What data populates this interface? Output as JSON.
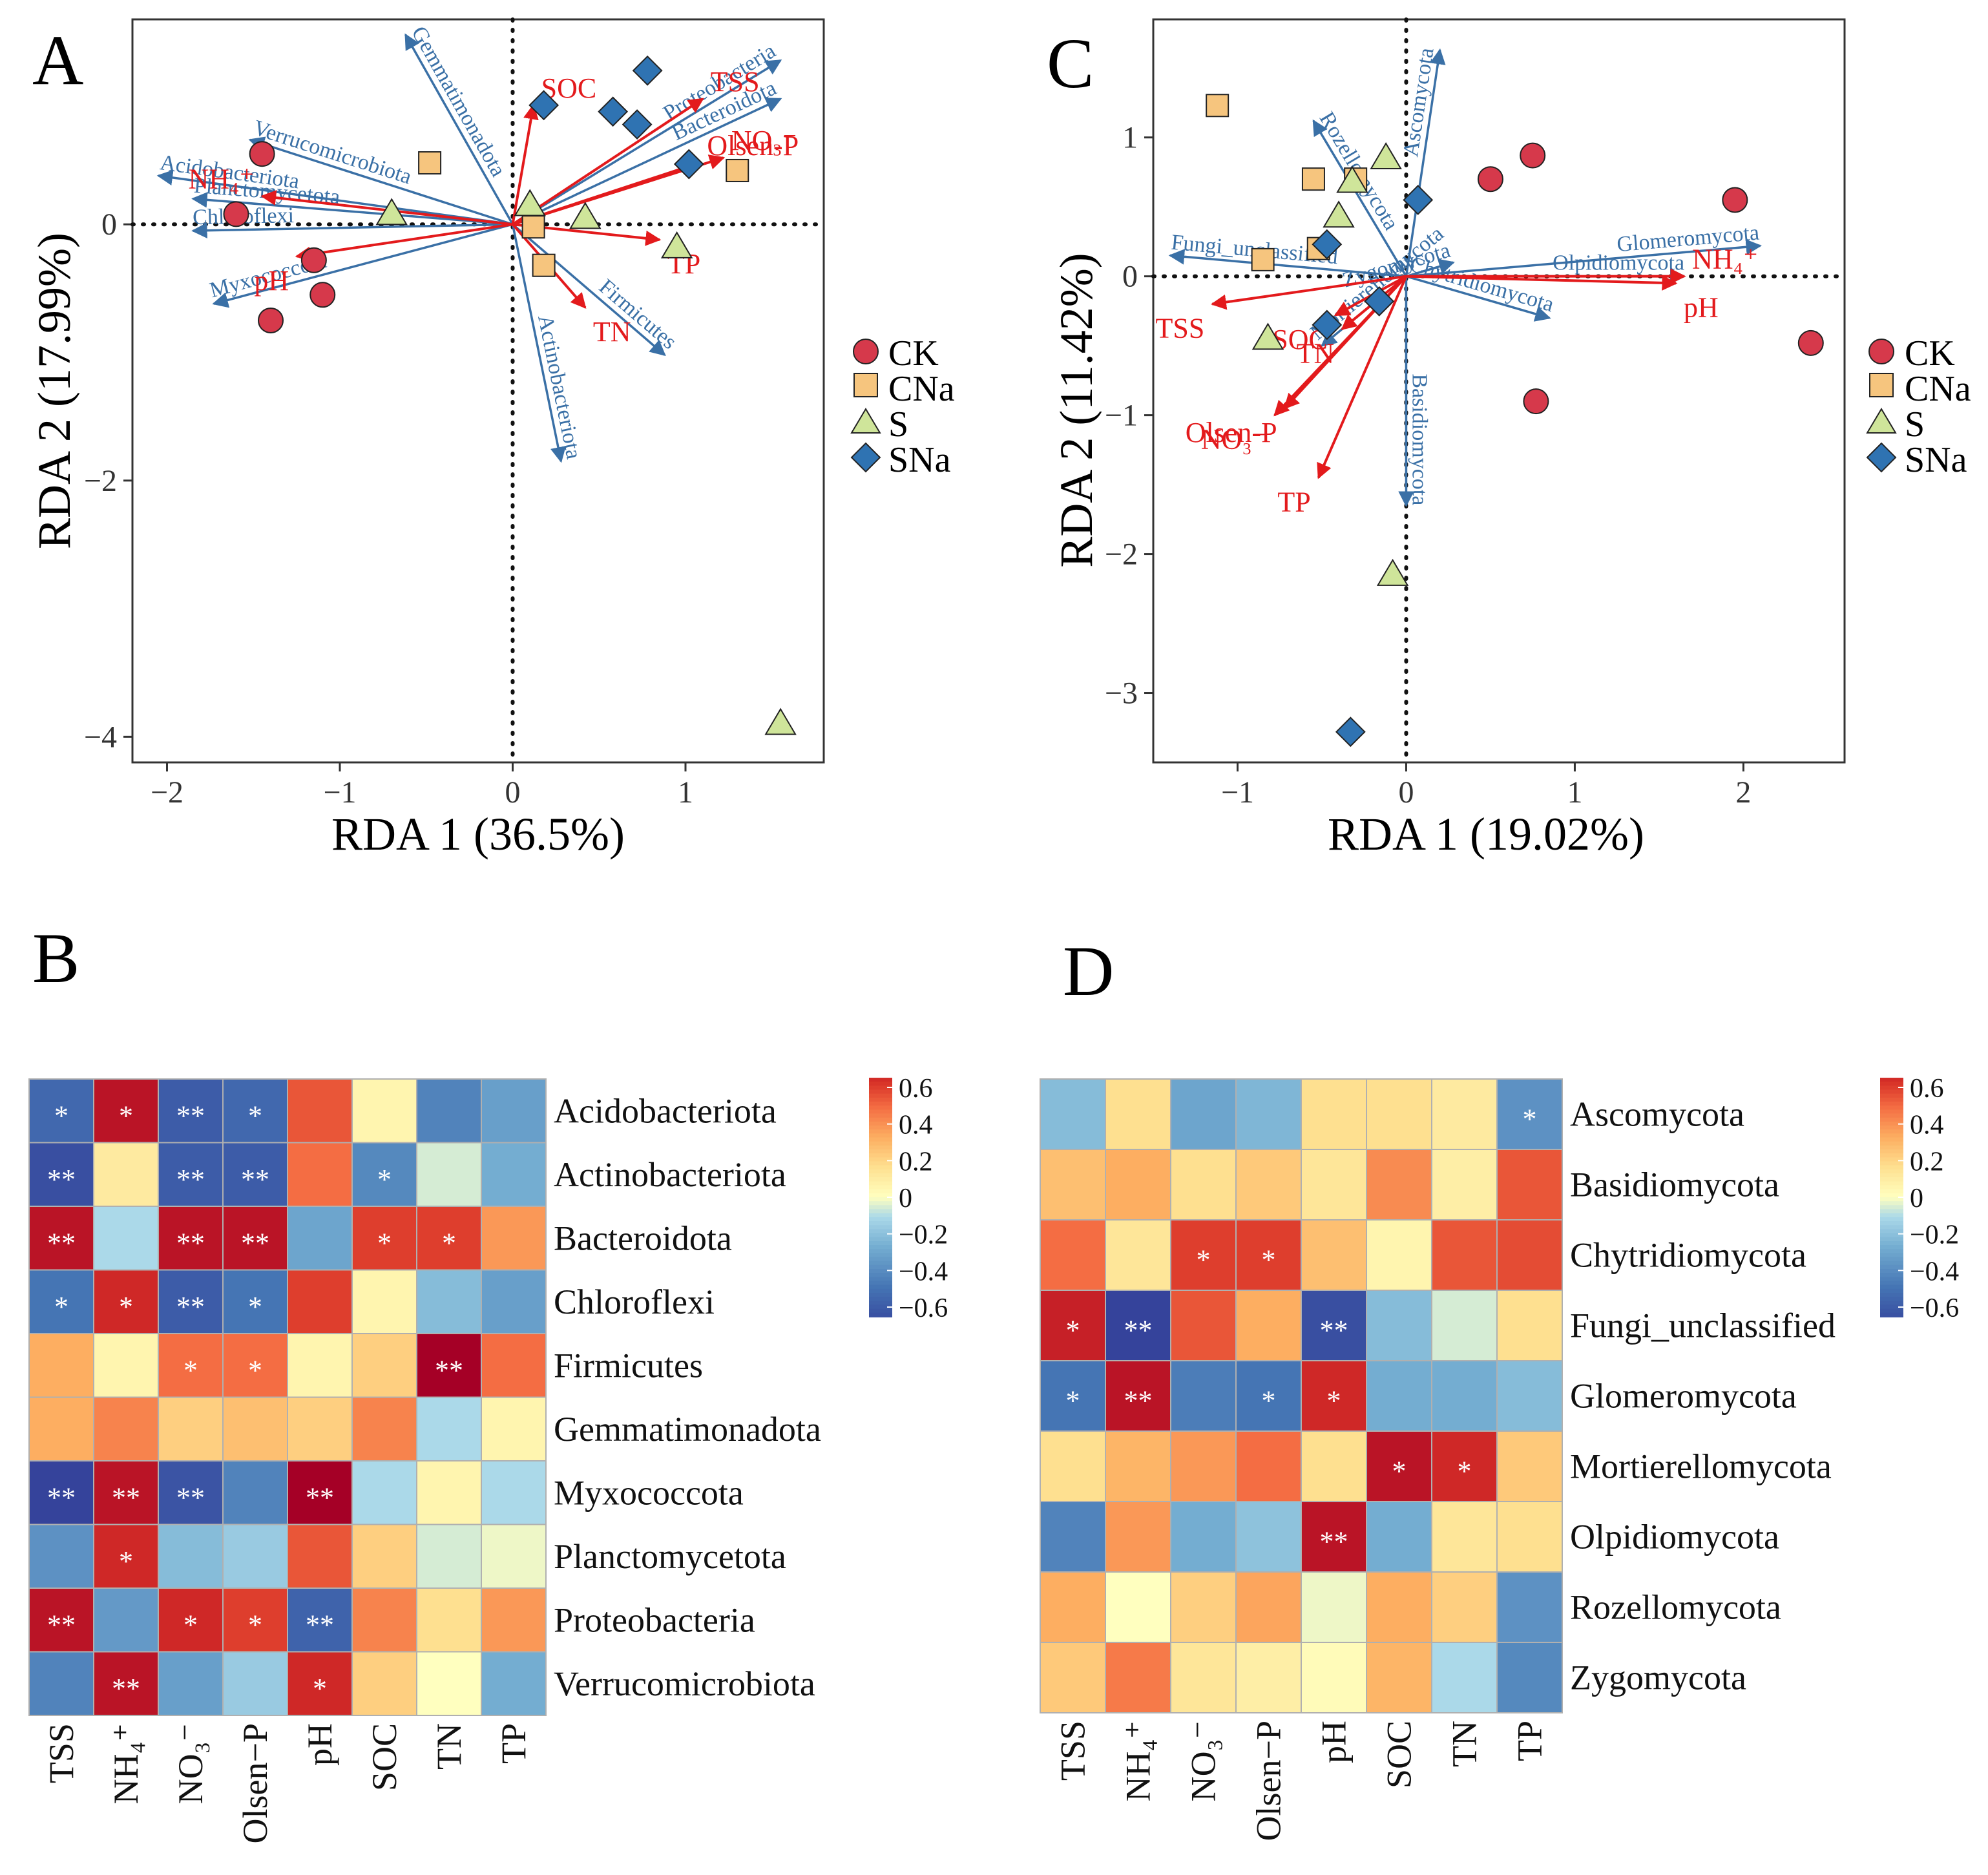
{
  "figure": {
    "colors": {
      "group_CK": "#d6394b",
      "group_CNa": "#f6c57e",
      "group_S": "#cfe59a",
      "group_SNa": "#2f73b2",
      "species_arrow": "#3a70a6",
      "env_arrow": "#e31a1c",
      "heatmap_low": "#313695",
      "heatmap_mid": "#ffffbf",
      "heatmap_high": "#a50026"
    },
    "legend_groups": [
      "CK",
      "CNa",
      "S",
      "SNa"
    ],
    "legend_shapes": [
      "circle-icon",
      "square-icon",
      "triangle-icon",
      "diamond-icon"
    ]
  },
  "chart_data": [
    {
      "panel": "A",
      "type": "scatter",
      "title": "A",
      "xlabel": "RDA 1 (36.5%)",
      "ylabel": "RDA 2 (17.99%)",
      "xlim": [
        -2.2,
        1.8
      ],
      "ylim": [
        -4.2,
        1.6
      ],
      "xticks": [
        -2,
        -1,
        0,
        1
      ],
      "yticks": [
        -4,
        -2,
        0
      ],
      "xtick_labels": [
        "−2",
        "−1",
        "0",
        "1"
      ],
      "ytick_labels": [
        "−4",
        "−2",
        "0"
      ],
      "points": [
        {
          "group": "CK",
          "x": -1.45,
          "y": 0.55
        },
        {
          "group": "CK",
          "x": -1.6,
          "y": 0.08
        },
        {
          "group": "CK",
          "x": -1.15,
          "y": -0.28
        },
        {
          "group": "CK",
          "x": -1.1,
          "y": -0.55
        },
        {
          "group": "CK",
          "x": -1.4,
          "y": -0.75
        },
        {
          "group": "CNa",
          "x": -0.48,
          "y": 0.48
        },
        {
          "group": "CNa",
          "x": 0.12,
          "y": -0.02
        },
        {
          "group": "CNa",
          "x": 0.18,
          "y": -0.32
        },
        {
          "group": "CNa",
          "x": 1.3,
          "y": 0.42
        },
        {
          "group": "S",
          "x": -0.7,
          "y": 0.08
        },
        {
          "group": "S",
          "x": 0.1,
          "y": 0.15
        },
        {
          "group": "S",
          "x": 0.42,
          "y": 0.05
        },
        {
          "group": "S",
          "x": 0.95,
          "y": -0.18
        },
        {
          "group": "S",
          "x": 1.55,
          "y": -3.9
        },
        {
          "group": "SNa",
          "x": 0.18,
          "y": 0.93
        },
        {
          "group": "SNa",
          "x": 0.58,
          "y": 0.88
        },
        {
          "group": "SNa",
          "x": 0.72,
          "y": 0.78
        },
        {
          "group": "SNa",
          "x": 0.78,
          "y": 1.2
        },
        {
          "group": "SNa",
          "x": 1.02,
          "y": 0.47
        }
      ],
      "species_arrows": [
        {
          "label": "Gemmatimonadota",
          "x": -0.62,
          "y": 1.48
        },
        {
          "label": "Verrucomicrobiota",
          "x": -1.52,
          "y": 0.66
        },
        {
          "label": "Acidobacteriota",
          "x": -2.05,
          "y": 0.38
        },
        {
          "label": "Planctomycetota",
          "x": -1.85,
          "y": 0.2
        },
        {
          "label": "Chloroflexi",
          "x": -1.85,
          "y": -0.05
        },
        {
          "label": "Myxococcota",
          "x": -1.73,
          "y": -0.62
        },
        {
          "label": "Proteobacteria",
          "x": 1.55,
          "y": 1.28
        },
        {
          "label": "Bacteroidota",
          "x": 1.55,
          "y": 0.98
        },
        {
          "label": "Firmicutes",
          "x": 0.88,
          "y": -1.02
        },
        {
          "label": "Actinobacteriota",
          "x": 0.28,
          "y": -1.85
        }
      ],
      "env_arrows": [
        {
          "label": "SOC",
          "x": 0.12,
          "y": 0.93
        },
        {
          "label": "TSS",
          "x": 1.1,
          "y": 0.98
        },
        {
          "label": "NO₃⁻",
          "x": 1.22,
          "y": 0.52
        },
        {
          "label": "Olsen-P",
          "x": 1.08,
          "y": 0.48
        },
        {
          "label": "TP",
          "x": 0.85,
          "y": -0.12
        },
        {
          "label": "TN",
          "x": 0.42,
          "y": -0.65
        },
        {
          "label": "pH",
          "x": -1.25,
          "y": -0.25
        },
        {
          "label": "NH₄⁺",
          "x": -1.45,
          "y": 0.22
        }
      ]
    },
    {
      "panel": "C",
      "type": "scatter",
      "title": "C",
      "xlabel": "RDA 1 (19.02%)",
      "ylabel": "RDA 2 (11.42%)",
      "xlim": [
        -1.5,
        2.6
      ],
      "ylim": [
        -3.5,
        1.85
      ],
      "xticks": [
        -1,
        0,
        1,
        2
      ],
      "yticks": [
        -3,
        -2,
        -1,
        0,
        1
      ],
      "xtick_labels": [
        "−1",
        "0",
        "1",
        "2"
      ],
      "ytick_labels": [
        "−3",
        "−2",
        "−1",
        "0",
        "1"
      ],
      "points": [
        {
          "group": "CK",
          "x": 0.5,
          "y": 0.7
        },
        {
          "group": "CK",
          "x": 0.75,
          "y": 0.87
        },
        {
          "group": "CK",
          "x": 1.95,
          "y": 0.55
        },
        {
          "group": "CK",
          "x": 2.4,
          "y": -0.48
        },
        {
          "group": "CK",
          "x": 0.77,
          "y": -0.9
        },
        {
          "group": "CNa",
          "x": -1.12,
          "y": 1.23
        },
        {
          "group": "CNa",
          "x": -0.55,
          "y": 0.7
        },
        {
          "group": "CNa",
          "x": -0.3,
          "y": 0.7
        },
        {
          "group": "CNa",
          "x": -0.85,
          "y": 0.12
        },
        {
          "group": "CNa",
          "x": -0.52,
          "y": 0.2
        },
        {
          "group": "S",
          "x": -0.12,
          "y": 0.85
        },
        {
          "group": "S",
          "x": -0.32,
          "y": 0.68
        },
        {
          "group": "S",
          "x": -0.4,
          "y": 0.43
        },
        {
          "group": "S",
          "x": -0.82,
          "y": -0.45
        },
        {
          "group": "S",
          "x": -0.08,
          "y": -2.15
        },
        {
          "group": "SNa",
          "x": 0.07,
          "y": 0.55
        },
        {
          "group": "SNa",
          "x": -0.47,
          "y": 0.23
        },
        {
          "group": "SNa",
          "x": -0.47,
          "y": -0.35
        },
        {
          "group": "SNa",
          "x": -0.16,
          "y": -0.18
        },
        {
          "group": "SNa",
          "x": -0.33,
          "y": -3.28
        }
      ],
      "species_arrows": [
        {
          "label": "Ascomycota",
          "x": 0.2,
          "y": 1.63
        },
        {
          "label": "Rozellomycota",
          "x": -0.55,
          "y": 1.12
        },
        {
          "label": "Fungi_unclassified",
          "x": -1.4,
          "y": 0.15
        },
        {
          "label": "Zygomycota",
          "x": 0.28,
          "y": 0.1
        },
        {
          "label": "Glomeromycota",
          "x": 2.1,
          "y": 0.22
        },
        {
          "label": "Olpidiomycota",
          "x": 1.65,
          "y": 0.0
        },
        {
          "label": "Chytridiomycota",
          "x": 0.85,
          "y": -0.3
        },
        {
          "label": "Mortierellomycota",
          "x": -0.5,
          "y": -0.5
        },
        {
          "label": "Basidiomycota",
          "x": 0.0,
          "y": -1.65
        }
      ],
      "env_arrows": [
        {
          "label": "NH₄⁺",
          "x": 1.65,
          "y": 0.0
        },
        {
          "label": "pH",
          "x": 1.6,
          "y": -0.05
        },
        {
          "label": "TSS",
          "x": -1.15,
          "y": -0.2
        },
        {
          "label": "SOC",
          "x": -0.42,
          "y": -0.28
        },
        {
          "label": "TN",
          "x": -0.38,
          "y": -0.38
        },
        {
          "label": "Olsen-P",
          "x": -0.72,
          "y": -0.95
        },
        {
          "label": "NO₃⁻",
          "x": -0.78,
          "y": -1.0
        },
        {
          "label": "TP",
          "x": -0.52,
          "y": -1.45
        }
      ]
    },
    {
      "panel": "B",
      "type": "heatmap",
      "title": "B",
      "rows": [
        "Acidobacteriota",
        "Actinobacteriota",
        "Bacteroidota",
        "Chloroflexi",
        "Firmicutes",
        "Gemmatimonadota",
        "Myxococcota",
        "Planctomycetota",
        "Proteobacteria",
        "Verrucomicrobiota"
      ],
      "cols": [
        "TSS",
        "NH₄⁺",
        "NO₃⁻",
        "Olsen−P",
        "pH",
        "SOC",
        "TN",
        "TP"
      ],
      "values": [
        [
          -0.5,
          0.65,
          -0.55,
          -0.5,
          0.5,
          0.05,
          -0.4,
          -0.3
        ],
        [
          -0.6,
          0.1,
          -0.55,
          -0.55,
          0.45,
          -0.38,
          -0.05,
          -0.25
        ],
        [
          0.65,
          -0.1,
          0.65,
          0.65,
          -0.28,
          0.55,
          0.55,
          0.35
        ],
        [
          -0.45,
          0.6,
          -0.55,
          -0.45,
          0.55,
          0.05,
          -0.2,
          -0.3
        ],
        [
          0.3,
          0.05,
          0.45,
          0.45,
          0.05,
          0.2,
          0.7,
          0.45
        ],
        [
          0.3,
          0.4,
          0.2,
          0.25,
          0.2,
          0.4,
          -0.1,
          0.05
        ],
        [
          -0.65,
          0.65,
          -0.58,
          -0.4,
          0.7,
          -0.1,
          0.05,
          -0.1
        ],
        [
          -0.35,
          0.6,
          -0.2,
          -0.15,
          0.5,
          0.2,
          -0.05,
          -0.02
        ],
        [
          0.65,
          -0.32,
          0.6,
          0.55,
          -0.52,
          0.4,
          0.15,
          0.35
        ],
        [
          -0.4,
          0.65,
          -0.3,
          -0.15,
          0.6,
          0.2,
          0.0,
          -0.25
        ]
      ],
      "stars": [
        [
          "*",
          "*",
          "**",
          "*",
          "",
          "",
          "",
          ""
        ],
        [
          "**",
          "",
          "**",
          "**",
          "",
          "*",
          "",
          ""
        ],
        [
          "**",
          "",
          "**",
          "**",
          "",
          "*",
          "*",
          ""
        ],
        [
          "*",
          "*",
          "**",
          "*",
          "",
          "",
          "",
          ""
        ],
        [
          "",
          "",
          "*",
          "*",
          "",
          "",
          "**",
          ""
        ],
        [
          "",
          "",
          "",
          "",
          "",
          "",
          "",
          ""
        ],
        [
          "**",
          "**",
          "**",
          "",
          "**",
          "",
          "",
          ""
        ],
        [
          "",
          "*",
          "",
          "",
          "",
          "",
          "",
          ""
        ],
        [
          "**",
          "",
          "*",
          "*",
          "**",
          "",
          "",
          ""
        ],
        [
          "",
          "**",
          "",
          "",
          "*",
          "",
          "",
          ""
        ]
      ],
      "colorbar": {
        "min": -0.6,
        "max": 0.6,
        "ticks": [
          "0.6",
          "0.4",
          "0.2",
          "0",
          "−0.2",
          "−0.4",
          "−0.6"
        ]
      }
    },
    {
      "panel": "D",
      "type": "heatmap",
      "title": "D",
      "rows": [
        "Ascomycota",
        "Basidiomycota",
        "Chytridiomycota",
        "Fungi_unclassified",
        "Glomeromycota",
        "Mortierellomycota",
        "Olpidiomycota",
        "Rozellomycota",
        "Zygomycota"
      ],
      "cols": [
        "TSS",
        "NH₄⁺",
        "NO₃⁻",
        "Olsen−P",
        "pH",
        "SOC",
        "TN",
        "TP"
      ],
      "values": [
        [
          -0.2,
          0.15,
          -0.28,
          -0.22,
          0.15,
          0.15,
          0.1,
          -0.35
        ],
        [
          0.25,
          0.3,
          0.15,
          0.22,
          0.12,
          0.38,
          0.08,
          0.5
        ],
        [
          0.45,
          0.12,
          0.55,
          0.55,
          0.25,
          0.05,
          0.5,
          0.52
        ],
        [
          0.62,
          -0.65,
          0.5,
          0.3,
          -0.6,
          -0.2,
          -0.05,
          0.15
        ],
        [
          -0.45,
          0.65,
          -0.42,
          -0.45,
          0.6,
          -0.25,
          -0.25,
          -0.2
        ],
        [
          0.15,
          0.28,
          0.35,
          0.45,
          0.15,
          0.65,
          0.6,
          0.22
        ],
        [
          -0.4,
          0.35,
          -0.25,
          -0.18,
          0.65,
          -0.25,
          0.12,
          0.15
        ],
        [
          0.3,
          0.0,
          0.2,
          0.32,
          -0.02,
          0.3,
          0.2,
          -0.35
        ],
        [
          0.22,
          0.42,
          0.12,
          0.08,
          0.02,
          0.28,
          -0.1,
          -0.38
        ]
      ],
      "stars": [
        [
          "",
          "",
          "",
          "",
          "",
          "",
          "",
          "*"
        ],
        [
          "",
          "",
          "",
          "",
          "",
          "",
          "",
          ""
        ],
        [
          "",
          "",
          "*",
          "*",
          "",
          "",
          "",
          ""
        ],
        [
          "*",
          "**",
          "",
          "",
          "**",
          "",
          "",
          ""
        ],
        [
          "*",
          "**",
          "",
          "*",
          "*",
          "",
          "",
          ""
        ],
        [
          "",
          "",
          "",
          "",
          "",
          "*",
          "*",
          ""
        ],
        [
          "",
          "",
          "",
          "",
          "**",
          "",
          "",
          ""
        ],
        [
          "",
          "",
          "",
          "",
          "",
          "",
          "",
          ""
        ],
        [
          "",
          "",
          "",
          "",
          "",
          "",
          "",
          ""
        ]
      ],
      "colorbar": {
        "min": -0.6,
        "max": 0.6,
        "ticks": [
          "0.6",
          "0.4",
          "0.2",
          "0",
          "−0.2",
          "−0.4",
          "−0.6"
        ]
      }
    }
  ]
}
